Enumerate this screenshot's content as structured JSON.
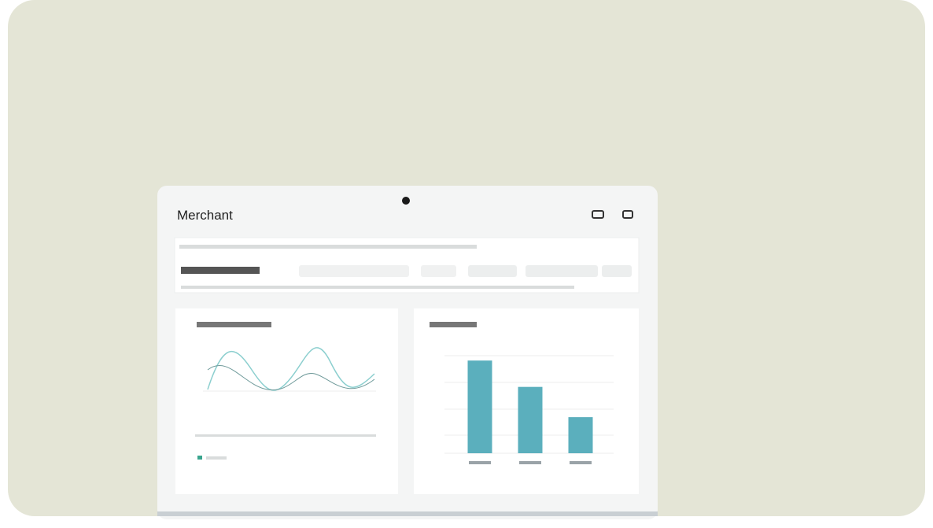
{
  "header": {
    "title": "Merchant"
  },
  "chart_data": {
    "type": "bar",
    "values": [
      0.95,
      0.68,
      0.37
    ],
    "color": "#5bafbd",
    "ylim": [
      0,
      1
    ]
  }
}
